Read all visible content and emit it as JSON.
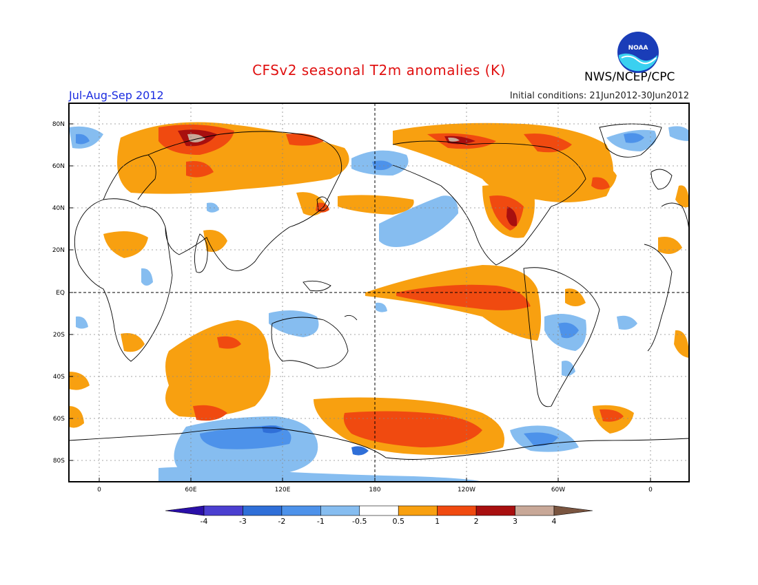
{
  "header": {
    "title": "CFSv2 seasonal T2m anomalies (K)",
    "agency": "NWS/NCEP/CPC",
    "logo_text": "NOAA",
    "season": "Jul-Aug-Sep 2012",
    "initial_conditions": "Initial conditions: 21Jun2012-30Jun2012"
  },
  "axes": {
    "lat_labels": [
      "80N",
      "60N",
      "40N",
      "20N",
      "EQ",
      "20S",
      "40S",
      "60S",
      "80S"
    ],
    "lon_labels": [
      "0",
      "60E",
      "120E",
      "180",
      "120W",
      "60W",
      "0"
    ]
  },
  "colorbar": {
    "labels": [
      "-4",
      "-3",
      "-2",
      "-1",
      "-0.5",
      "0.5",
      "1",
      "2",
      "3",
      "4"
    ],
    "colors": [
      "#2a0fa8",
      "#4b3fd0",
      "#2f6fd8",
      "#4d92ea",
      "#86bdf0",
      "#ffffff",
      "#f8a010",
      "#f04a10",
      "#a80f0f",
      "#c8a898",
      "#7a5540"
    ]
  },
  "colors": {
    "title": "#e01010",
    "season": "#1a2be0",
    "warm_light": "#f8a010",
    "warm_mid": "#f04a10",
    "warm_dark": "#a80f0f",
    "cool_light": "#86bdf0",
    "cool_mid": "#4d92ea",
    "cool_dark": "#2f6fd8"
  }
}
